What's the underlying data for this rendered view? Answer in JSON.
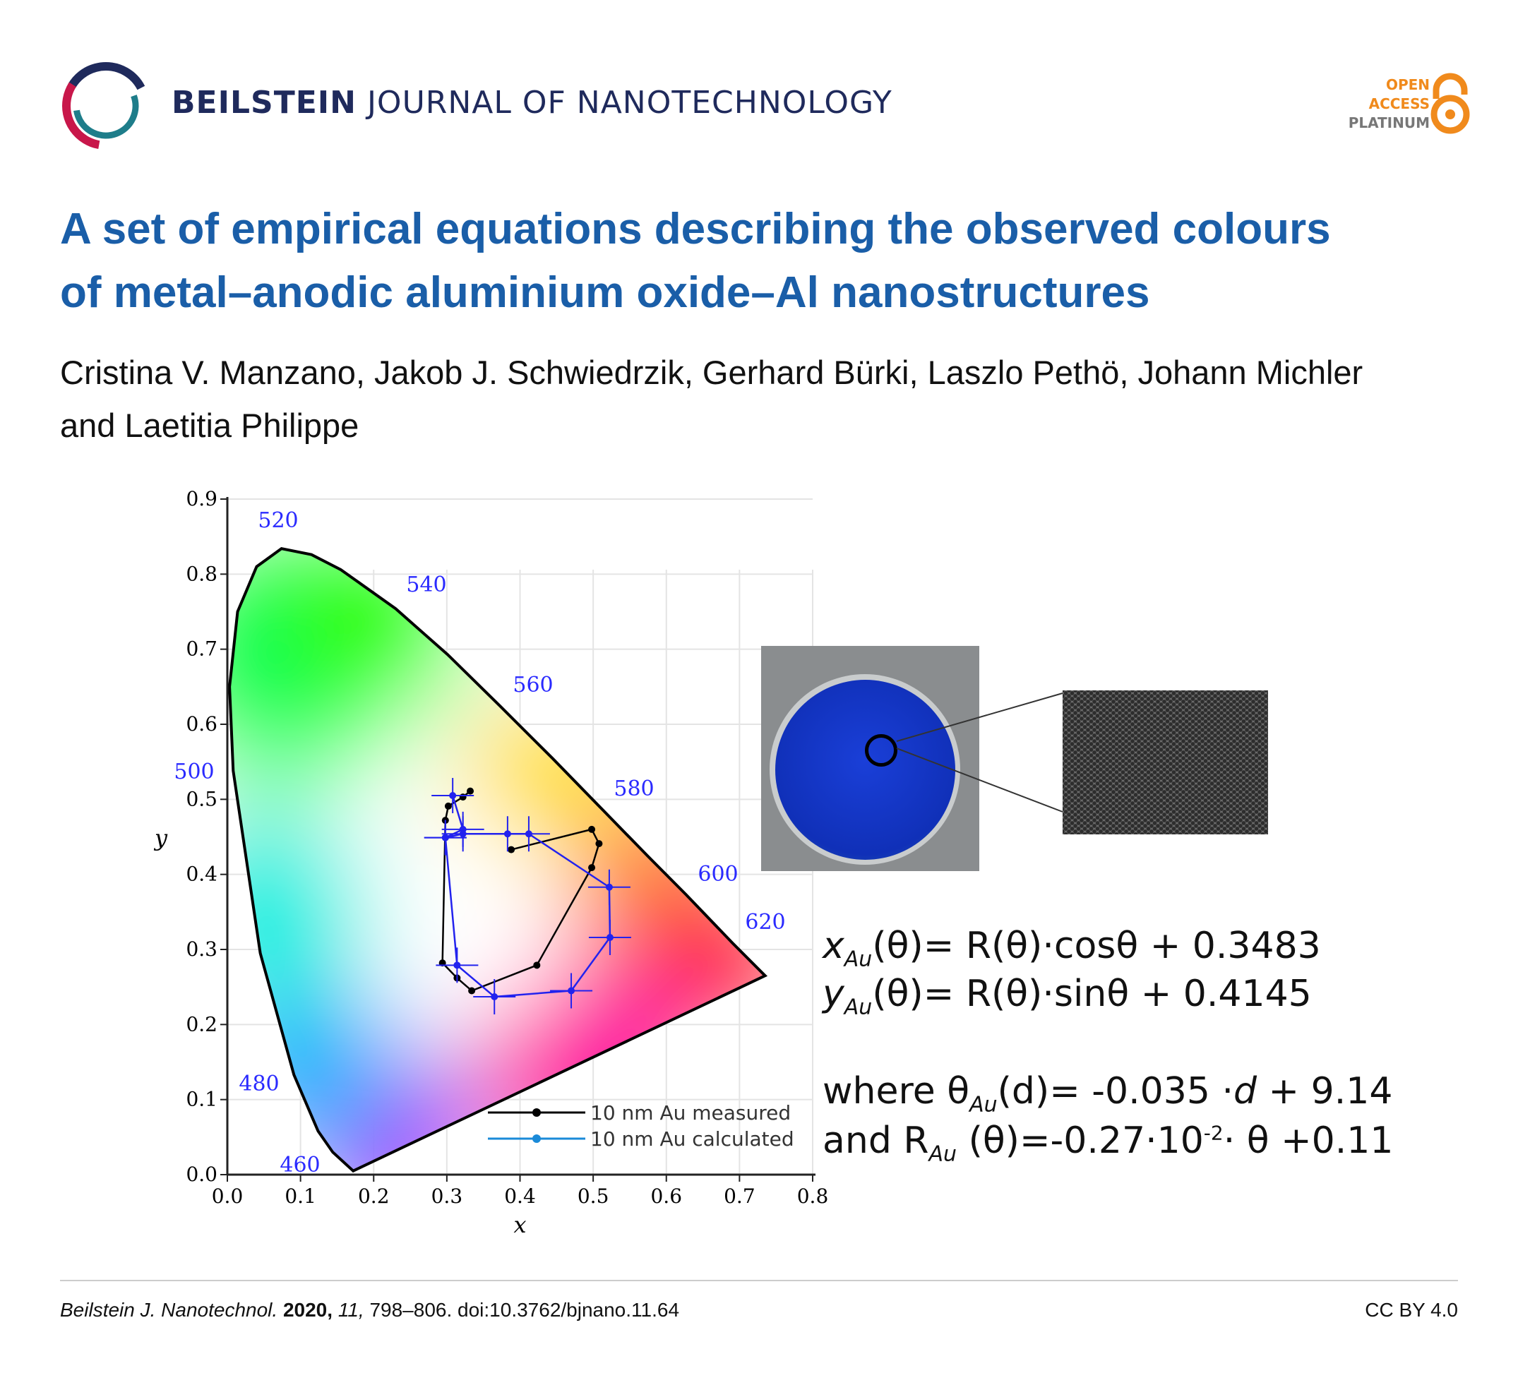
{
  "header": {
    "journal_bold": "BEILSTEIN",
    "journal_rest": " JOURNAL OF NANOTECHNOLOGY",
    "oa_line1": "OPEN",
    "oa_line2": "ACCESS",
    "oa_line3": "PLATINUM",
    "colors": {
      "navy": "#1f2a5c",
      "orange": "#f08a1c",
      "blue_title": "#1a5ea8"
    }
  },
  "article": {
    "title_line1": "A set of empirical equations describing the observed colours",
    "title_line2": "of metal–anodic aluminium oxide–Al nanostructures",
    "authors_line1": "Cristina V. Manzano, Jakob J. Schwiedrzik, Gerhard Bürki, Laszlo Pethö, Johann Michler",
    "authors_line2": "and Laetitia Philippe"
  },
  "chart_data": {
    "type": "scatter",
    "title": "",
    "xlabel": "x",
    "ylabel": "y",
    "xlim": [
      0,
      0.8
    ],
    "ylim": [
      0,
      0.9
    ],
    "xticks": [
      "0.0",
      "0.1",
      "0.2",
      "0.3",
      "0.4",
      "0.5",
      "0.6",
      "0.7",
      "0.8"
    ],
    "yticks": [
      "0.0",
      "0.1",
      "0.2",
      "0.3",
      "0.4",
      "0.5",
      "0.6",
      "0.7",
      "0.8",
      "0.9"
    ],
    "wavelength_labels": [
      "460",
      "480",
      "500",
      "520",
      "540",
      "560",
      "580",
      "600",
      "620"
    ],
    "legend": [
      "10 nm Au measured",
      "10 nm Au calculated"
    ],
    "legend_position": "bottom-right",
    "series": [
      {
        "name": "10 nm Au measured",
        "color": "#000000",
        "points": [
          [
            0.388,
            0.433
          ],
          [
            0.498,
            0.46
          ],
          [
            0.508,
            0.441
          ],
          [
            0.498,
            0.409
          ],
          [
            0.423,
            0.279
          ],
          [
            0.334,
            0.245
          ],
          [
            0.314,
            0.262
          ],
          [
            0.294,
            0.282
          ],
          [
            0.298,
            0.472
          ],
          [
            0.302,
            0.491
          ],
          [
            0.322,
            0.503
          ],
          [
            0.332,
            0.511
          ]
        ]
      },
      {
        "name": "10 nm Au calculated",
        "color": "#2222ee",
        "points": [
          [
            0.308,
            0.505
          ],
          [
            0.322,
            0.46
          ],
          [
            0.298,
            0.449
          ],
          [
            0.322,
            0.454
          ],
          [
            0.383,
            0.454
          ],
          [
            0.412,
            0.454
          ],
          [
            0.522,
            0.383
          ],
          [
            0.523,
            0.316
          ],
          [
            0.47,
            0.245
          ],
          [
            0.365,
            0.237
          ],
          [
            0.314,
            0.279
          ],
          [
            0.298,
            0.449
          ]
        ]
      }
    ]
  },
  "equations": {
    "eq1": {
      "var": "x",
      "sub": "Au",
      "rest": "(θ)= R(θ)·cosθ + 0.3483"
    },
    "eq2": {
      "var": "y",
      "sub": "Au",
      "rest": "(θ)= R(θ)·sinθ + 0.4145"
    },
    "eq3": {
      "pre": " where θ",
      "sub": "Au",
      "mid": "(d)= -0.035 ·",
      "var": "d",
      "rest": " + 9.14"
    },
    "eq4": {
      "pre": "and R",
      "sub": "Au",
      "mid": " (θ)=-0.27·10",
      "sup": "-2",
      "rest": "· θ +0.11"
    }
  },
  "footer": {
    "journal": "Beilstein J. Nanotechnol.",
    "year": "2020,",
    "volume": "11,",
    "pages": " 798–806. doi:10.3762/bjnano.11.64",
    "license": "CC BY 4.0"
  }
}
